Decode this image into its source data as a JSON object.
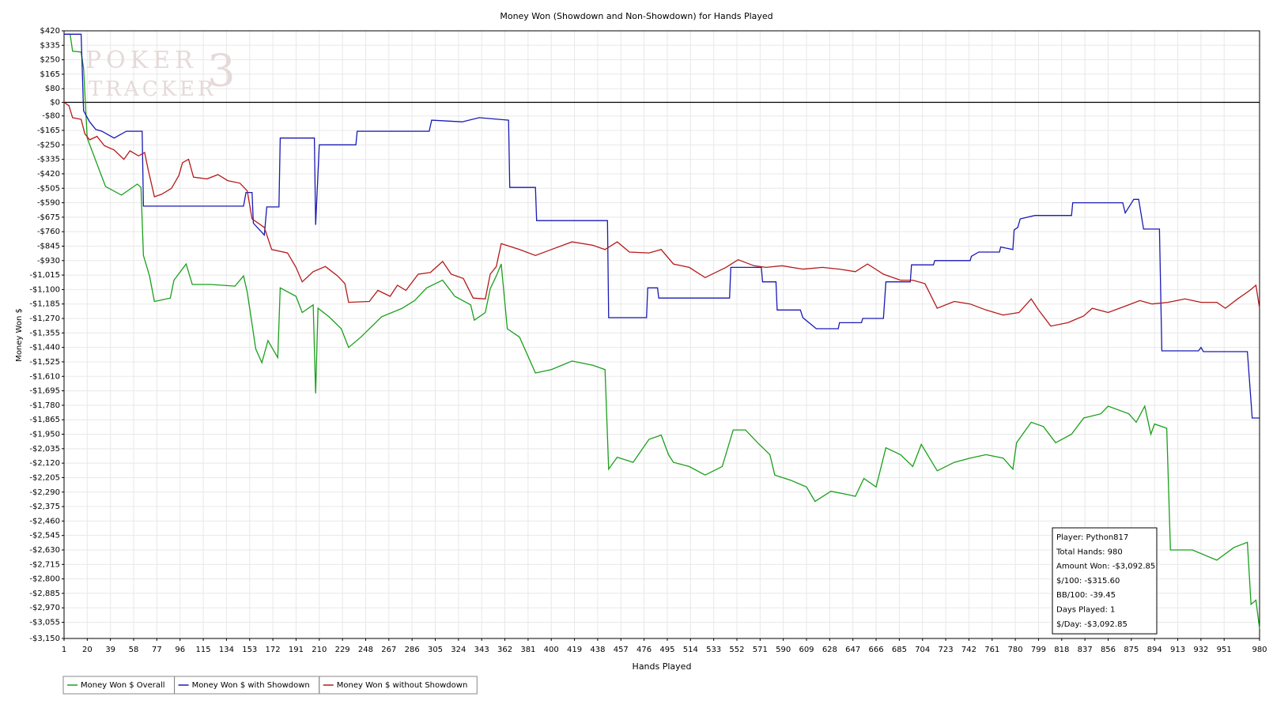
{
  "chart_data": {
    "type": "line",
    "title": "Money Won (Showdown and Non-Showdown) for Hands Played",
    "x_label": "Hands Played",
    "y_label": "Money Won $",
    "watermark": [
      "POKER",
      "TRACKER",
      "3"
    ],
    "grid": true,
    "zero_line": true,
    "legend": "bottom-left",
    "xlim": [
      1,
      980
    ],
    "ylim": [
      -3150,
      420
    ],
    "xticks": [
      1,
      20,
      39,
      58,
      77,
      96,
      115,
      134,
      153,
      172,
      191,
      210,
      229,
      248,
      267,
      286,
      305,
      324,
      343,
      362,
      381,
      400,
      419,
      438,
      457,
      476,
      495,
      514,
      533,
      552,
      571,
      590,
      609,
      628,
      647,
      666,
      685,
      704,
      723,
      742,
      761,
      780,
      799,
      818,
      837,
      856,
      875,
      894,
      913,
      932,
      951,
      980
    ],
    "yticks": [
      {
        "value": 420,
        "label": "$420"
      },
      {
        "value": 335,
        "label": "$335"
      },
      {
        "value": 250,
        "label": "$250"
      },
      {
        "value": 165,
        "label": "$165"
      },
      {
        "value": 80,
        "label": "$80"
      },
      {
        "value": 0,
        "label": "$0"
      },
      {
        "value": -80,
        "label": "-$80"
      },
      {
        "value": -165,
        "label": "-$165"
      },
      {
        "value": -250,
        "label": "-$250"
      },
      {
        "value": -335,
        "label": "-$335"
      },
      {
        "value": -420,
        "label": "-$420"
      },
      {
        "value": -505,
        "label": "-$505"
      },
      {
        "value": -590,
        "label": "-$590"
      },
      {
        "value": -675,
        "label": "-$675"
      },
      {
        "value": -760,
        "label": "-$760"
      },
      {
        "value": -845,
        "label": "-$845"
      },
      {
        "value": -930,
        "label": "-$930"
      },
      {
        "value": -1015,
        "label": "-$1,015"
      },
      {
        "value": -1100,
        "label": "-$1,100"
      },
      {
        "value": -1185,
        "label": "-$1,185"
      },
      {
        "value": -1270,
        "label": "-$1,270"
      },
      {
        "value": -1355,
        "label": "-$1,355"
      },
      {
        "value": -1440,
        "label": "-$1,440"
      },
      {
        "value": -1525,
        "label": "-$1,525"
      },
      {
        "value": -1610,
        "label": "-$1,610"
      },
      {
        "value": -1695,
        "label": "-$1,695"
      },
      {
        "value": -1780,
        "label": "-$1,780"
      },
      {
        "value": -1865,
        "label": "-$1,865"
      },
      {
        "value": -1950,
        "label": "-$1,950"
      },
      {
        "value": -2035,
        "label": "-$2,035"
      },
      {
        "value": -2120,
        "label": "-$2,120"
      },
      {
        "value": -2205,
        "label": "-$2,205"
      },
      {
        "value": -2290,
        "label": "-$2,290"
      },
      {
        "value": -2375,
        "label": "-$2,375"
      },
      {
        "value": -2460,
        "label": "-$2,460"
      },
      {
        "value": -2545,
        "label": "-$2,545"
      },
      {
        "value": -2630,
        "label": "-$2,630"
      },
      {
        "value": -2715,
        "label": "-$2,715"
      },
      {
        "value": -2800,
        "label": "-$2,800"
      },
      {
        "value": -2885,
        "label": "-$2,885"
      },
      {
        "value": -2970,
        "label": "-$2,970"
      },
      {
        "value": -3055,
        "label": "-$3,055"
      },
      {
        "value": -3150,
        "label": "-$3,150"
      }
    ],
    "series": [
      {
        "name": "Money Won $ Overall",
        "color": "#1aa01a",
        "x": [
          1,
          6,
          8,
          15,
          17,
          20,
          35,
          48,
          61,
          64,
          66,
          71,
          75,
          88,
          91,
          101,
          106,
          121,
          141,
          148,
          151,
          158,
          163,
          168,
          176,
          178,
          191,
          196,
          205,
          207,
          209,
          218,
          228,
          234,
          244,
          261,
          278,
          288,
          298,
          311,
          321,
          334,
          337,
          346,
          350,
          355,
          359,
          364,
          374,
          387,
          400,
          417,
          434,
          444,
          447,
          454,
          467,
          480,
          490,
          496,
          500,
          513,
          526,
          540,
          549,
          559,
          569,
          579,
          583,
          596,
          609,
          616,
          629,
          643,
          649,
          656,
          666,
          674,
          686,
          696,
          703,
          716,
          730,
          743,
          756,
          770,
          778,
          781,
          793,
          803,
          813,
          826,
          836,
          850,
          856,
          873,
          879,
          886,
          891,
          894,
          904,
          907,
          925,
          945,
          959,
          970,
          973,
          977,
          980
        ],
        "values": [
          400,
          400,
          300,
          295,
          200,
          -210,
          -495,
          -545,
          -480,
          -500,
          -900,
          -1020,
          -1170,
          -1150,
          -1045,
          -950,
          -1070,
          -1070,
          -1080,
          -1020,
          -1115,
          -1450,
          -1530,
          -1400,
          -1500,
          -1090,
          -1140,
          -1235,
          -1190,
          -1710,
          -1210,
          -1260,
          -1330,
          -1440,
          -1380,
          -1260,
          -1210,
          -1165,
          -1090,
          -1045,
          -1140,
          -1190,
          -1280,
          -1235,
          -1095,
          -1020,
          -950,
          -1330,
          -1380,
          -1590,
          -1570,
          -1520,
          -1545,
          -1570,
          -2155,
          -2085,
          -2115,
          -1980,
          -1955,
          -2070,
          -2115,
          -2140,
          -2190,
          -2140,
          -1925,
          -1925,
          -2000,
          -2070,
          -2190,
          -2220,
          -2260,
          -2345,
          -2285,
          -2305,
          -2315,
          -2210,
          -2260,
          -2030,
          -2070,
          -2140,
          -2010,
          -2165,
          -2115,
          -2090,
          -2070,
          -2090,
          -2155,
          -2000,
          -1880,
          -1905,
          -2000,
          -1950,
          -1855,
          -1830,
          -1785,
          -1830,
          -1880,
          -1785,
          -1950,
          -1890,
          -1915,
          -2630,
          -2630,
          -2690,
          -2615,
          -2585,
          -2950,
          -2925,
          -3093
        ]
      },
      {
        "name": "Money Won $ with Showdown",
        "color": "#1a1ab4",
        "x": [
          1,
          15,
          17,
          22,
          27,
          32,
          42,
          52,
          65,
          66,
          148,
          150,
          155,
          156,
          165,
          167,
          177,
          178,
          206,
          207,
          210,
          240,
          241,
          300,
          302,
          327,
          341,
          365,
          366,
          387,
          388,
          446,
          447,
          478,
          479,
          487,
          488,
          546,
          547,
          572,
          573,
          584,
          585,
          604,
          606,
          617,
          635,
          636,
          654,
          655,
          672,
          674,
          694,
          695,
          713,
          714,
          743,
          744,
          750,
          767,
          768,
          778,
          779,
          782,
          784,
          796,
          826,
          827,
          868,
          870,
          877,
          881,
          885,
          898,
          900,
          930,
          932,
          934,
          970,
          974,
          980
        ],
        "values": [
          400,
          400,
          -50,
          -115,
          -160,
          -170,
          -210,
          -170,
          -170,
          -610,
          -610,
          -530,
          -530,
          -710,
          -780,
          -615,
          -615,
          -210,
          -210,
          -720,
          -250,
          -250,
          -170,
          -170,
          -105,
          -115,
          -90,
          -105,
          -500,
          -500,
          -695,
          -695,
          -1265,
          -1265,
          -1090,
          -1090,
          -1150,
          -1150,
          -970,
          -970,
          -1055,
          -1055,
          -1220,
          -1220,
          -1265,
          -1330,
          -1330,
          -1295,
          -1295,
          -1270,
          -1270,
          -1055,
          -1055,
          -955,
          -955,
          -930,
          -930,
          -905,
          -880,
          -880,
          -850,
          -865,
          -750,
          -735,
          -685,
          -665,
          -665,
          -590,
          -590,
          -650,
          -570,
          -570,
          -745,
          -745,
          -1460,
          -1460,
          -1440,
          -1465,
          -1465,
          -1855,
          -1855
        ]
      },
      {
        "name": "Money Won $ without Showdown",
        "color": "#b41a1a",
        "x": [
          1,
          5,
          8,
          15,
          18,
          22,
          28,
          34,
          42,
          50,
          55,
          62,
          67,
          70,
          75,
          81,
          89,
          95,
          98,
          103,
          107,
          118,
          127,
          135,
          145,
          151,
          155,
          165,
          171,
          184,
          191,
          196,
          205,
          215,
          225,
          231,
          234,
          251,
          258,
          268,
          274,
          281,
          291,
          301,
          311,
          318,
          328,
          336,
          346,
          350,
          355,
          359,
          374,
          387,
          400,
          417,
          434,
          444,
          454,
          464,
          480,
          490,
          500,
          513,
          526,
          543,
          553,
          566,
          576,
          589,
          606,
          622,
          636,
          649,
          659,
          672,
          686,
          696,
          706,
          716,
          730,
          743,
          756,
          770,
          783,
          793,
          799,
          809,
          823,
          836,
          843,
          856,
          869,
          882,
          892,
          905,
          919,
          932,
          945,
          952,
          962,
          972,
          977,
          980
        ],
        "values": [
          0,
          -20,
          -90,
          -100,
          -185,
          -220,
          -200,
          -255,
          -280,
          -335,
          -285,
          -315,
          -295,
          -400,
          -555,
          -540,
          -505,
          -430,
          -355,
          -335,
          -440,
          -450,
          -425,
          -460,
          -475,
          -520,
          -685,
          -735,
          -865,
          -885,
          -970,
          -1055,
          -995,
          -965,
          -1020,
          -1065,
          -1175,
          -1170,
          -1105,
          -1140,
          -1075,
          -1105,
          -1010,
          -1000,
          -935,
          -1010,
          -1035,
          -1150,
          -1155,
          -1010,
          -965,
          -830,
          -865,
          -900,
          -865,
          -820,
          -840,
          -865,
          -820,
          -880,
          -885,
          -865,
          -950,
          -970,
          -1030,
          -970,
          -925,
          -960,
          -970,
          -960,
          -980,
          -970,
          -980,
          -995,
          -950,
          -1010,
          -1045,
          -1045,
          -1065,
          -1210,
          -1170,
          -1185,
          -1220,
          -1250,
          -1235,
          -1155,
          -1220,
          -1315,
          -1295,
          -1255,
          -1210,
          -1235,
          -1200,
          -1165,
          -1185,
          -1175,
          -1155,
          -1175,
          -1175,
          -1210,
          -1155,
          -1105,
          -1075,
          -1210
        ]
      }
    ],
    "info_box": [
      "Player: Python817",
      "Total Hands: 980",
      "Amount Won: -$3,092.85",
      "$/100: -$315.60",
      "BB/100: -39.45",
      "Days Played: 1",
      "$/Day: -$3,092.85"
    ]
  }
}
